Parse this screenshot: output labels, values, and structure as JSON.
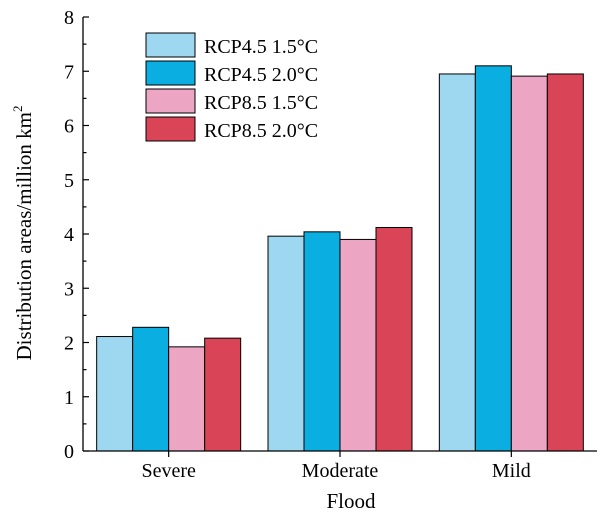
{
  "chart_data": {
    "type": "bar",
    "categories": [
      "Severe",
      "Moderate",
      "Mild"
    ],
    "series": [
      {
        "name": "RCP4.5 1.5°C",
        "color": "#9DD8F0",
        "values": [
          2.11,
          3.96,
          6.95
        ]
      },
      {
        "name": "RCP4.5 2.0°C",
        "color": "#0AAEE0",
        "values": [
          2.28,
          4.04,
          7.1
        ]
      },
      {
        "name": "RCP8.5 1.5°C",
        "color": "#ECA6C4",
        "values": [
          1.92,
          3.9,
          6.91
        ]
      },
      {
        "name": "RCP8.5 2.0°C",
        "color": "#D94457",
        "values": [
          2.08,
          4.12,
          6.95
        ]
      }
    ],
    "title": "",
    "xlabel": "Flood",
    "ylabel": "Distribution areas/million km",
    "ylabel_superscript": "2",
    "ylim": [
      0,
      8
    ],
    "yticks": [
      "0",
      "1",
      "2",
      "3",
      "4",
      "5",
      "6",
      "7",
      "8"
    ],
    "grid": false,
    "legend_position": "top-left"
  }
}
